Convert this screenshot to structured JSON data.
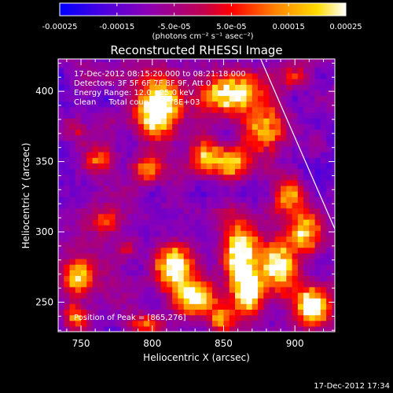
{
  "colorbar": {
    "min": -0.00025,
    "max": 0.00025,
    "tick_labels": [
      "-0.00025",
      "-0.00015",
      "-5.0e-05",
      "5.0e-05",
      "0.00015",
      "0.00025"
    ],
    "tick_values": [
      -0.00025,
      -0.00015,
      -5e-05,
      5e-05,
      0.00015,
      0.00025
    ],
    "unit_label": "(photons cm⁻² s⁻¹ asec⁻²)",
    "colormap_stops": [
      {
        "value": 0.0,
        "color": "#0000ff"
      },
      {
        "value": 0.15,
        "color": "#4a00e0"
      },
      {
        "value": 0.3,
        "color": "#8a00b8"
      },
      {
        "value": 0.5,
        "color": "#c00050"
      },
      {
        "value": 0.6,
        "color": "#ff0000"
      },
      {
        "value": 0.75,
        "color": "#ff8000"
      },
      {
        "value": 0.9,
        "color": "#ffdc00"
      },
      {
        "value": 1.0,
        "color": "#ffffff"
      }
    ]
  },
  "chart_data": {
    "type": "heatmap",
    "title": "Reconstructed RHESSI Image",
    "xlabel": "Heliocentric X (arcsec)",
    "ylabel": "Heliocentric Y (arcsec)",
    "xlim": [
      734,
      928
    ],
    "ylim": [
      229,
      423
    ],
    "x_ticks": [
      750,
      800,
      850,
      900
    ],
    "y_ticks": [
      250,
      300,
      350,
      400
    ],
    "annotations": [
      "17-Dec-2012 08:15:20.000 to 08:21:18.000",
      "Detectors: 3F 5F 6F 7F 8F 9F, Att 0",
      "Energy Range: 12.0 - 25.0 keV",
      "Clean     Total counts: 4.78E+03"
    ],
    "peak_label": "Position of Peak = [865,276]",
    "peak_position": [
      865,
      276
    ],
    "limb_line": [
      [
        876,
        423
      ],
      [
        928,
        302
      ]
    ],
    "bright_sources": [
      {
        "x": 805,
        "y": 388,
        "amplitude": 1.0,
        "sx": 10,
        "sy": 13
      },
      {
        "x": 855,
        "y": 398,
        "amplitude": 0.95,
        "sx": 14,
        "sy": 10
      },
      {
        "x": 880,
        "y": 372,
        "amplitude": 0.6,
        "sx": 9,
        "sy": 11
      },
      {
        "x": 795,
        "y": 345,
        "amplitude": 0.45,
        "sx": 8,
        "sy": 7
      },
      {
        "x": 838,
        "y": 355,
        "amplitude": 0.55,
        "sx": 7,
        "sy": 8
      },
      {
        "x": 855,
        "y": 350,
        "amplitude": 0.6,
        "sx": 8,
        "sy": 8
      },
      {
        "x": 760,
        "y": 353,
        "amplitude": 0.45,
        "sx": 8,
        "sy": 7
      },
      {
        "x": 748,
        "y": 372,
        "amplitude": 0.35,
        "sx": 7,
        "sy": 7
      },
      {
        "x": 895,
        "y": 325,
        "amplitude": 0.5,
        "sx": 8,
        "sy": 10
      },
      {
        "x": 768,
        "y": 308,
        "amplitude": 0.35,
        "sx": 7,
        "sy": 7
      },
      {
        "x": 815,
        "y": 275,
        "amplitude": 0.95,
        "sx": 9,
        "sy": 11
      },
      {
        "x": 830,
        "y": 253,
        "amplitude": 0.85,
        "sx": 9,
        "sy": 8
      },
      {
        "x": 862,
        "y": 285,
        "amplitude": 1.0,
        "sx": 8,
        "sy": 16
      },
      {
        "x": 868,
        "y": 258,
        "amplitude": 0.9,
        "sx": 7,
        "sy": 10
      },
      {
        "x": 890,
        "y": 275,
        "amplitude": 0.85,
        "sx": 9,
        "sy": 13
      },
      {
        "x": 908,
        "y": 300,
        "amplitude": 0.7,
        "sx": 8,
        "sy": 10
      },
      {
        "x": 912,
        "y": 248,
        "amplitude": 0.9,
        "sx": 8,
        "sy": 9
      },
      {
        "x": 748,
        "y": 268,
        "amplitude": 0.7,
        "sx": 7,
        "sy": 9
      },
      {
        "x": 745,
        "y": 240,
        "amplitude": 0.6,
        "sx": 6,
        "sy": 6
      },
      {
        "x": 795,
        "y": 235,
        "amplitude": 0.5,
        "sx": 8,
        "sy": 5
      },
      {
        "x": 848,
        "y": 238,
        "amplitude": 0.55,
        "sx": 6,
        "sy": 6
      },
      {
        "x": 900,
        "y": 410,
        "amplitude": 0.4,
        "sx": 6,
        "sy": 6
      },
      {
        "x": 783,
        "y": 288,
        "amplitude": 0.3,
        "sx": 6,
        "sy": 6
      }
    ],
    "noise_seed": 7,
    "grid_step": 4,
    "grid": false
  },
  "footer": {
    "timestamp": "17-Dec-2012 17:34"
  }
}
